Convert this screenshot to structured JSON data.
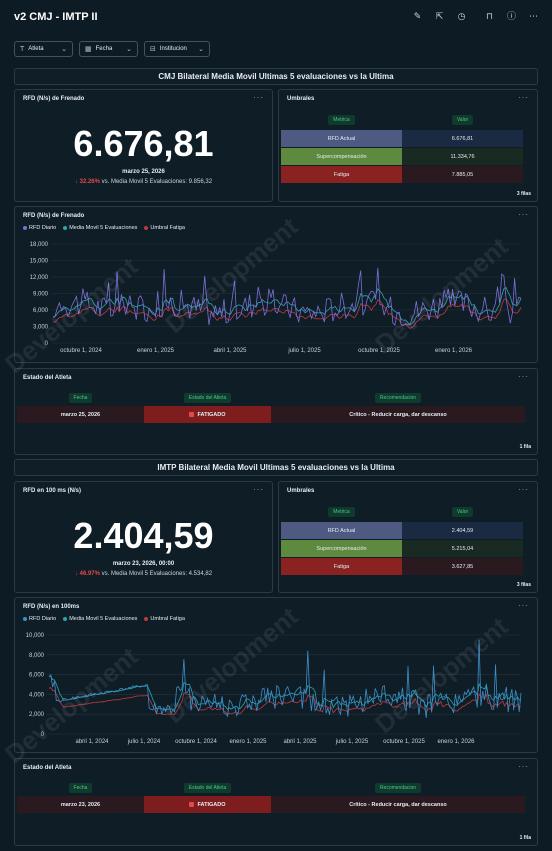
{
  "title": "v2 CMJ - IMTP II",
  "filters": [
    {
      "label": "Atleta",
      "icon": "text-icon"
    },
    {
      "label": "Fecha",
      "icon": "calendar-icon"
    },
    {
      "label": "Institucion",
      "icon": "filter-icon"
    }
  ],
  "sections": [
    {
      "heading": "CMJ Bilateral Media Movil Ultimas 5 evaluaciones vs la Ultima",
      "bignum": {
        "title": "RFD (N/s) de Frenado",
        "value": "6.676,81",
        "date": "marzo 25, 2026",
        "change": "32.26%",
        "compare": "vs. Media Movil 5 Evaluaciones: 9.856,32"
      },
      "thresholds": {
        "title": "Umbrales",
        "col_metric": "Metrica",
        "col_value": "Valor",
        "rows": [
          {
            "metric": "RFD Actual",
            "value": "6.676,81",
            "color": "#4f5a82"
          },
          {
            "metric": "Supercompensación",
            "value": "11.334,76",
            "color": "#5e8a3f"
          },
          {
            "metric": "Fatiga",
            "value": "7.885,05",
            "color": "#8a2222"
          }
        ],
        "count": "3 filas"
      },
      "chart": {
        "title": "RFD (N/s) de Frenado",
        "legend": [
          "RFD Diario",
          "Media Movil 5 Evaluaciones",
          "Umbral Fatiga"
        ]
      },
      "status": {
        "title": "Estado del Atleta",
        "col_date": "Fecha",
        "col_status": "Estado del Atleta",
        "col_rec": "Recomendacion",
        "date": "marzo 25, 2026",
        "state": "FATIGADO",
        "recommendation": "Crítico - Reducir carga, dar descanso",
        "count": "1 fila"
      }
    },
    {
      "heading": "IMTP Bilateral Media Movil Ultimas 5 evaluaciones vs la Ultima",
      "bignum": {
        "title": "RFD en 100 ms (N/s)",
        "value": "2.404,59",
        "date": "marzo 23, 2026, 00:00",
        "change": "46.97%",
        "compare": "vs. Media Movil 5 Evaluaciones: 4.534,82"
      },
      "thresholds": {
        "title": "Umbrales",
        "col_metric": "Metrica",
        "col_value": "Valor",
        "rows": [
          {
            "metric": "RFD Actual",
            "value": "2.404,59",
            "color": "#4f5a82"
          },
          {
            "metric": "Supercompensación",
            "value": "5.215,04",
            "color": "#5e8a3f"
          },
          {
            "metric": "Fatiga",
            "value": "3.627,85",
            "color": "#8a2222"
          }
        ],
        "count": "3 filas"
      },
      "chart": {
        "title": "RFD (N/s) en 100ms",
        "legend": [
          "RFD Diario",
          "Media Movil 5 Evaluaciones",
          "Umbral Fatiga"
        ]
      },
      "status": {
        "title": "Estado del Atleta",
        "col_date": "Fecha",
        "col_status": "Estado del Atleta",
        "col_rec": "Recomendacion",
        "date": "marzo 23, 2026",
        "state": "FATIGADO",
        "recommendation": "Crítico - Reducir carga, dar descanso",
        "count": "1 fila"
      }
    }
  ],
  "chart_data": [
    {
      "type": "line",
      "title": "RFD (N/s) de Frenado",
      "series": [
        {
          "name": "RFD Diario",
          "color": "#7b6fd6"
        },
        {
          "name": "Media Movil 5 Evaluaciones",
          "color": "#2fa3a9"
        },
        {
          "name": "Umbral Fatiga",
          "color": "#c0383d"
        }
      ],
      "ylim": [
        0,
        18000
      ],
      "yticks": [
        "18,000",
        "15,000",
        "12,000",
        "9,000",
        "6,000",
        "3,000",
        "0"
      ],
      "xticks": [
        "octubre 1, 2024",
        "enero 1, 2025",
        "abril 1, 2025",
        "julio 1, 2025",
        "octubre 1, 2025",
        "enero 1, 2026"
      ],
      "xrange": [
        "2024-08-20",
        "2026-03-25"
      ]
    },
    {
      "type": "line",
      "title": "RFD (N/s) en 100ms",
      "series": [
        {
          "name": "RFD Diario",
          "color": "#3b8ec8"
        },
        {
          "name": "Media Movil 5 Evaluaciones",
          "color": "#2fa3a9"
        },
        {
          "name": "Umbral Fatiga",
          "color": "#c0383d"
        }
      ],
      "ylim": [
        0,
        10000
      ],
      "yticks": [
        "10,000",
        "8,000",
        "6,000",
        "4,000",
        "2,000",
        "0"
      ],
      "xticks": [
        "abril 1, 2024",
        "julio 1, 2024",
        "octubre 1, 2024",
        "enero 1, 2025",
        "abril 1, 2025",
        "julio 1, 2025",
        "octubre 1, 2025",
        "enero 1, 2026"
      ],
      "xrange": [
        "2024-02-20",
        "2026-03-23"
      ]
    }
  ],
  "watermark": "Development"
}
